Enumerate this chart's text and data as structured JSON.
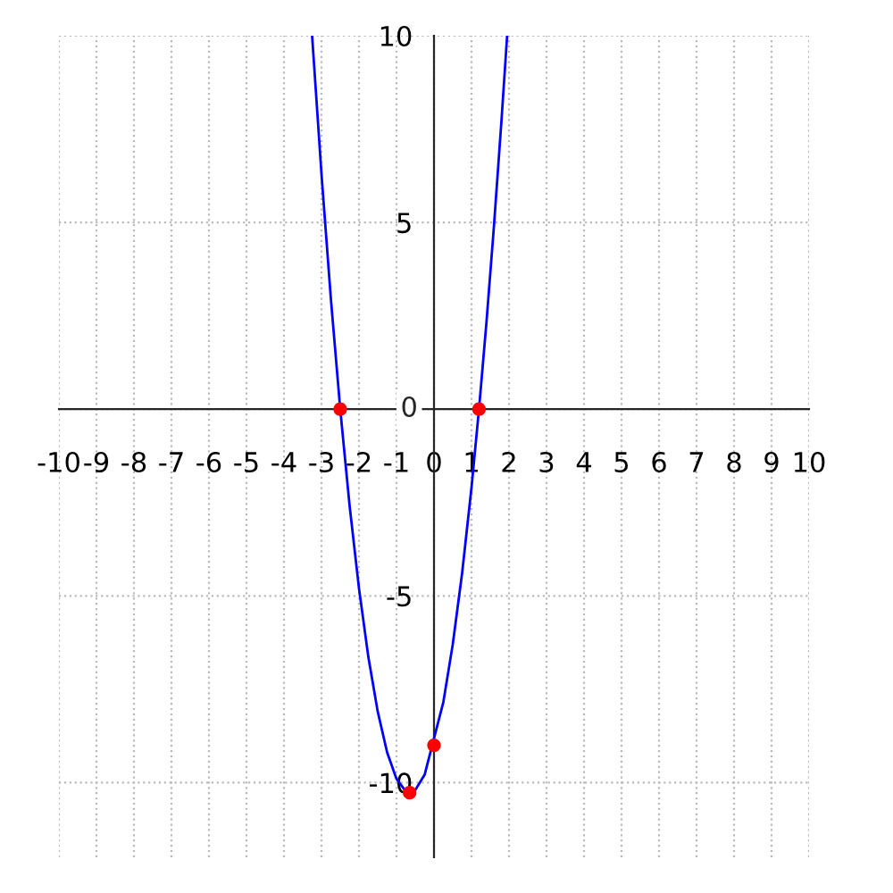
{
  "chart_data": {
    "type": "line",
    "series": [
      {
        "type": "line",
        "color": "#0000ff",
        "marker": "none",
        "line_style": "solid",
        "x": [
          -3.25,
          -3.0,
          -2.75,
          -2.5,
          -2.25,
          -2.0,
          -1.75,
          -1.5,
          -1.25,
          -1.0,
          -0.75,
          -0.65,
          -0.5,
          -0.25,
          0.25,
          0.5,
          0.75,
          1.0,
          1.2,
          1.4,
          1.6,
          1.8,
          1.95
        ],
        "values": [
          10.0,
          6.3,
          2.96,
          0,
          -2.59,
          -4.8,
          -6.64,
          -8.1,
          -9.19,
          -9.9,
          -10.24,
          -10.27,
          -10.2,
          -9.79,
          -7.84,
          -6.3,
          -4.39,
          -2.1,
          0,
          2.34,
          4.92,
          7.74,
          10.0
        ]
      },
      {
        "type": "scatter",
        "color": "#ff0000",
        "marker": "circle",
        "x": [
          -2.5,
          1.2,
          0,
          -0.65
        ],
        "values": [
          0,
          0,
          -9.0,
          -10.27
        ]
      }
    ],
    "xlim": [
      -10,
      10
    ],
    "ylim": [
      -12,
      10
    ],
    "xticks": [
      -10,
      -9,
      -8,
      -7,
      -6,
      -5,
      -4,
      -3,
      -2,
      -1,
      0,
      1,
      2,
      3,
      4,
      5,
      6,
      7,
      8,
      9,
      10
    ],
    "yticks": [
      -10,
      -5,
      0,
      5,
      10
    ],
    "grid": true
  }
}
